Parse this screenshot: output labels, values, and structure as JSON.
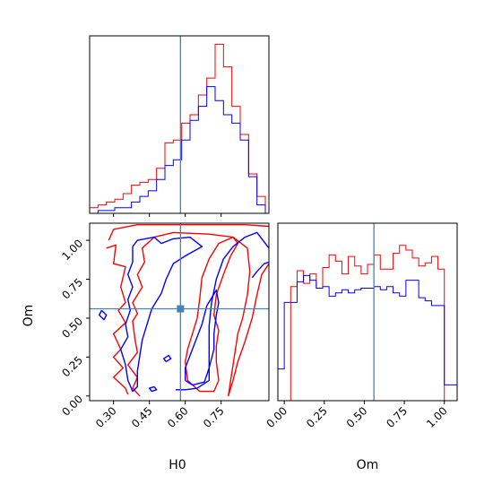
{
  "chart_data": {
    "type": "corner",
    "parameters": [
      "H0",
      "Om"
    ],
    "xlabel": "H0",
    "ylabel": "Om",
    "xlabel_om": "Om",
    "truths": {
      "H0": 0.58,
      "Om": 0.56
    },
    "truth_color": "#4682b4",
    "series": [
      {
        "color": "#ff0000"
      },
      {
        "color": "#0000ff"
      }
    ],
    "hist_H0": {
      "xlim": [
        0.2,
        0.95
      ],
      "edges": [
        0.2,
        0.235,
        0.27,
        0.305,
        0.34,
        0.375,
        0.41,
        0.445,
        0.48,
        0.515,
        0.55,
        0.585,
        0.62,
        0.655,
        0.69,
        0.725,
        0.76,
        0.795,
        0.83,
        0.865,
        0.9,
        0.935
      ],
      "red": [
        2,
        3,
        4,
        5,
        7,
        10,
        11,
        12,
        16,
        25,
        26,
        32,
        35,
        42,
        48,
        60,
        52,
        38,
        28,
        14,
        6
      ],
      "blue": [
        0,
        1,
        1,
        2,
        2,
        4,
        6,
        8,
        12,
        17,
        19,
        26,
        33,
        38,
        45,
        40,
        35,
        32,
        26,
        13,
        3
      ],
      "tick_values": [
        0.3,
        0.45,
        0.6,
        0.75
      ]
    },
    "hist_Om": {
      "xlim": [
        -0.04,
        1.08
      ],
      "edges": [
        -0.04,
        0.0,
        0.04,
        0.08,
        0.12,
        0.16,
        0.2,
        0.24,
        0.28,
        0.32,
        0.36,
        0.4,
        0.44,
        0.48,
        0.52,
        0.56,
        0.6,
        0.64,
        0.68,
        0.72,
        0.76,
        0.8,
        0.84,
        0.88,
        0.92,
        0.96,
        1.0,
        1.04,
        1.08
      ],
      "red": [
        0,
        0,
        0.72,
        0.82,
        0.74,
        0.8,
        0.71,
        0.84,
        0.92,
        0.88,
        0.8,
        0.91,
        0.85,
        0.8,
        0.86,
        0.92,
        0.83,
        0.83,
        0.93,
        0.98,
        0.95,
        0.9,
        0.85,
        0.87,
        0.91,
        0.83,
        0,
        0
      ],
      "blue": [
        0.2,
        0.62,
        0.62,
        0.75,
        0.79,
        0.76,
        0.71,
        0.72,
        0.66,
        0.68,
        0.7,
        0.68,
        0.7,
        0.71,
        0.71,
        0.72,
        0.7,
        0.72,
        0.68,
        0.66,
        0.76,
        0.76,
        0.65,
        0.63,
        0.6,
        0.6,
        0.1,
        0.1
      ],
      "tick_values": [
        0.0,
        0.25,
        0.5,
        0.75,
        1.0
      ],
      "tick_labels": [
        "0.00",
        "0.25",
        "0.50",
        "0.75",
        "1.00"
      ]
    },
    "scatter": {
      "xlim": [
        0.2,
        0.95
      ],
      "ylim": [
        -0.03,
        1.11
      ],
      "x_tick_values": [
        0.3,
        0.45,
        0.6,
        0.75
      ],
      "x_tick_labels": [
        "0.30",
        "0.45",
        "0.60",
        "0.75"
      ],
      "y_tick_values": [
        0.0,
        0.25,
        0.5,
        0.75,
        1.0
      ],
      "y_tick_labels": [
        "0.00",
        "0.25",
        "0.50",
        "0.75",
        "1.00"
      ],
      "contours_red": [
        [
          [
            0.28,
            1.0
          ],
          [
            0.3,
            1.07
          ],
          [
            0.4,
            1.1
          ],
          [
            0.55,
            1.1
          ],
          [
            0.7,
            1.1
          ],
          [
            0.85,
            1.1
          ],
          [
            0.95,
            1.09
          ]
        ],
        [
          [
            0.27,
            0.95
          ],
          [
            0.31,
            0.97
          ],
          [
            0.3,
            0.85
          ],
          [
            0.35,
            0.83
          ],
          [
            0.33,
            0.7
          ],
          [
            0.35,
            0.6
          ],
          [
            0.32,
            0.55
          ],
          [
            0.35,
            0.47
          ],
          [
            0.3,
            0.4
          ],
          [
            0.33,
            0.3
          ],
          [
            0.3,
            0.25
          ],
          [
            0.34,
            0.18
          ],
          [
            0.3,
            0.12
          ],
          [
            0.35,
            0.05
          ],
          [
            0.36,
            0.01
          ]
        ],
        [
          [
            0.41,
            0.0
          ],
          [
            0.38,
            0.05
          ],
          [
            0.4,
            0.12
          ],
          [
            0.36,
            0.2
          ],
          [
            0.4,
            0.28
          ],
          [
            0.39,
            0.36
          ],
          [
            0.38,
            0.48
          ],
          [
            0.4,
            0.53
          ],
          [
            0.38,
            0.6
          ],
          [
            0.42,
            0.7
          ],
          [
            0.4,
            0.78
          ],
          [
            0.43,
            0.86
          ],
          [
            0.42,
            0.95
          ],
          [
            0.47,
            1.02
          ],
          [
            0.55,
            1.05
          ],
          [
            0.7,
            1.04
          ],
          [
            0.8,
            1.02
          ],
          [
            0.86,
            0.95
          ],
          [
            0.87,
            0.8
          ],
          [
            0.86,
            0.65
          ],
          [
            0.84,
            0.5
          ],
          [
            0.82,
            0.4
          ],
          [
            0.81,
            0.3
          ],
          [
            0.8,
            0.2
          ],
          [
            0.79,
            0.1
          ],
          [
            0.78,
            0.0
          ]
        ],
        [
          [
            0.65,
            0.5
          ],
          [
            0.63,
            0.4
          ],
          [
            0.61,
            0.3
          ],
          [
            0.6,
            0.22
          ],
          [
            0.61,
            0.1
          ],
          [
            0.66,
            0.03
          ],
          [
            0.72,
            0.03
          ],
          [
            0.74,
            0.1
          ],
          [
            0.73,
            0.22
          ],
          [
            0.73,
            0.32
          ],
          [
            0.74,
            0.42
          ],
          [
            0.72,
            0.52
          ],
          [
            0.73,
            0.65
          ],
          [
            0.76,
            0.78
          ],
          [
            0.79,
            0.9
          ],
          [
            0.82,
            0.98
          ],
          [
            0.8,
            1.02
          ],
          [
            0.74,
            0.98
          ],
          [
            0.7,
            0.88
          ],
          [
            0.67,
            0.76
          ],
          [
            0.66,
            0.62
          ],
          [
            0.65,
            0.5
          ]
        ],
        [
          [
            0.78,
            0.0
          ],
          [
            0.8,
            0.1
          ],
          [
            0.82,
            0.22
          ],
          [
            0.85,
            0.35
          ],
          [
            0.88,
            0.5
          ],
          [
            0.9,
            0.65
          ],
          [
            0.92,
            0.78
          ],
          [
            0.95,
            0.85
          ]
        ]
      ],
      "contours_blue": [
        [
          [
            0.47,
            0.06
          ],
          [
            0.45,
            0.05
          ],
          [
            0.46,
            0.03
          ],
          [
            0.48,
            0.04
          ],
          [
            0.47,
            0.06
          ]
        ],
        [
          [
            0.56,
            0.04
          ],
          [
            0.6,
            0.04
          ],
          [
            0.65,
            0.05
          ],
          [
            0.7,
            0.1
          ],
          [
            0.7,
            0.22
          ],
          [
            0.7,
            0.32
          ],
          [
            0.7,
            0.45
          ],
          [
            0.71,
            0.6
          ],
          [
            0.73,
            0.75
          ],
          [
            0.76,
            0.88
          ],
          [
            0.8,
            0.96
          ],
          [
            0.85,
            1.02
          ],
          [
            0.9,
            1.05
          ],
          [
            0.95,
            0.95
          ]
        ],
        [
          [
            0.6,
            0.1
          ],
          [
            0.63,
            0.07
          ],
          [
            0.68,
            0.09
          ],
          [
            0.7,
            0.18
          ],
          [
            0.72,
            0.3
          ],
          [
            0.72,
            0.4
          ],
          [
            0.73,
            0.52
          ],
          [
            0.74,
            0.6
          ],
          [
            0.73,
            0.68
          ],
          [
            0.69,
            0.58
          ],
          [
            0.67,
            0.46
          ],
          [
            0.64,
            0.34
          ],
          [
            0.62,
            0.26
          ],
          [
            0.6,
            0.18
          ],
          [
            0.6,
            0.1
          ]
        ],
        [
          [
            0.38,
            0.96
          ],
          [
            0.4,
            1.0
          ],
          [
            0.47,
            1.02
          ],
          [
            0.5,
            0.98
          ],
          [
            0.55,
            1.01
          ],
          [
            0.62,
            1.02
          ],
          [
            0.67,
            0.96
          ],
          [
            0.6,
            0.9
          ],
          [
            0.55,
            0.85
          ],
          [
            0.52,
            0.75
          ],
          [
            0.5,
            0.66
          ],
          [
            0.46,
            0.56
          ],
          [
            0.44,
            0.46
          ],
          [
            0.42,
            0.36
          ],
          [
            0.41,
            0.26
          ],
          [
            0.4,
            0.16
          ],
          [
            0.4,
            0.06
          ],
          [
            0.38,
            0.03
          ],
          [
            0.36,
            0.1
          ],
          [
            0.35,
            0.2
          ],
          [
            0.33,
            0.3
          ],
          [
            0.36,
            0.38
          ],
          [
            0.35,
            0.46
          ],
          [
            0.37,
            0.55
          ],
          [
            0.36,
            0.62
          ],
          [
            0.38,
            0.7
          ],
          [
            0.36,
            0.78
          ],
          [
            0.38,
            0.86
          ],
          [
            0.38,
            0.96
          ]
        ],
        [
          [
            0.25,
            0.55
          ],
          [
            0.27,
            0.52
          ],
          [
            0.26,
            0.49
          ],
          [
            0.24,
            0.52
          ],
          [
            0.25,
            0.55
          ]
        ],
        [
          [
            0.52,
            0.22
          ],
          [
            0.54,
            0.24
          ],
          [
            0.53,
            0.26
          ],
          [
            0.51,
            0.24
          ],
          [
            0.52,
            0.22
          ]
        ],
        [
          [
            0.88,
            0.76
          ],
          [
            0.9,
            0.8
          ],
          [
            0.93,
            0.85
          ],
          [
            0.95,
            0.86
          ]
        ]
      ]
    }
  }
}
